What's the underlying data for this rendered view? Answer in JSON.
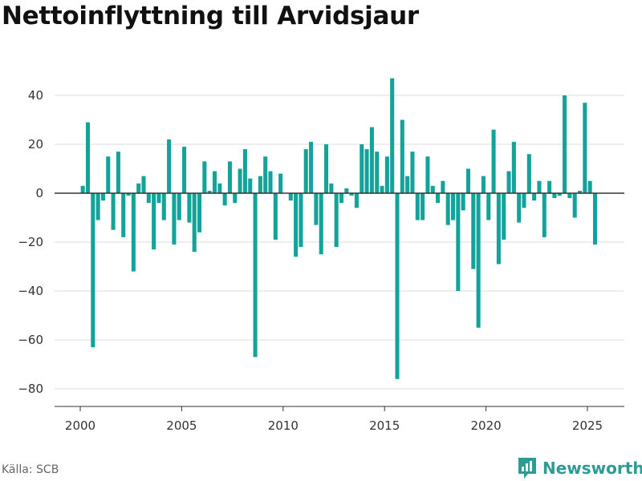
{
  "title": "Nettoinflyttning till Arvidsjaur",
  "source": "Källa: SCB",
  "brand": {
    "name": "Newsworthy",
    "icon": "newsworthy-logo-icon",
    "color": "#2e9b94"
  },
  "chart_data": {
    "type": "bar",
    "title": "Nettoinflyttning till Arvidsjaur",
    "xlabel": "",
    "ylabel": "",
    "bar_color": "#13a39a",
    "x_ticks": [
      2000,
      2005,
      2010,
      2015,
      2020,
      2025
    ],
    "y_ticks": [
      40,
      20,
      0,
      -20,
      -40,
      -60,
      -80
    ],
    "y_tick_labels": [
      "40",
      "20",
      "0",
      "−20",
      "−40",
      "−60",
      "−80"
    ],
    "ylim": [
      -87,
      50
    ],
    "xlim": [
      1999.875,
      2026.875
    ],
    "grid": true,
    "legend": "none",
    "x": [
      2000.125,
      2000.375,
      2000.625,
      2000.875,
      2001.125,
      2001.375,
      2001.625,
      2001.875,
      2002.125,
      2002.375,
      2002.625,
      2002.875,
      2003.125,
      2003.375,
      2003.625,
      2003.875,
      2004.125,
      2004.375,
      2004.625,
      2004.875,
      2005.125,
      2005.375,
      2005.625,
      2005.875,
      2006.125,
      2006.375,
      2006.625,
      2006.875,
      2007.125,
      2007.375,
      2007.625,
      2007.875,
      2008.125,
      2008.375,
      2008.625,
      2008.875,
      2009.125,
      2009.375,
      2009.625,
      2009.875,
      2010.125,
      2010.375,
      2010.625,
      2010.875,
      2011.125,
      2011.375,
      2011.625,
      2011.875,
      2012.125,
      2012.375,
      2012.625,
      2012.875,
      2013.125,
      2013.375,
      2013.625,
      2013.875,
      2014.125,
      2014.375,
      2014.625,
      2014.875,
      2015.125,
      2015.375,
      2015.625,
      2015.875,
      2016.125,
      2016.375,
      2016.625,
      2016.875,
      2017.125,
      2017.375,
      2017.625,
      2017.875,
      2018.125,
      2018.375,
      2018.625,
      2018.875,
      2019.125,
      2019.375,
      2019.625,
      2019.875,
      2020.125,
      2020.375,
      2020.625,
      2020.875,
      2021.125,
      2021.375,
      2021.625,
      2021.875,
      2022.125,
      2022.375,
      2022.625,
      2022.875,
      2023.125,
      2023.375,
      2023.625,
      2023.875,
      2024.125,
      2024.375,
      2024.625,
      2024.875,
      2025.125,
      2025.375
    ],
    "values": [
      3,
      29,
      -63,
      -11,
      -3,
      15,
      -15,
      17,
      -18,
      -1,
      -32,
      4,
      7,
      -4,
      -23,
      -4,
      -11,
      22,
      -21,
      -11,
      19,
      -12,
      -24,
      -16,
      13,
      1,
      9,
      4,
      -5,
      13,
      -4,
      10,
      18,
      6,
      -67,
      7,
      15,
      9,
      -19,
      8,
      0,
      -3,
      -26,
      -22,
      18,
      21,
      -13,
      -25,
      20,
      4,
      -22,
      -4,
      2,
      -1,
      -6,
      20,
      18,
      27,
      17,
      3,
      15,
      47,
      -76,
      30,
      7,
      17,
      -11,
      -11,
      15,
      3,
      -4,
      5,
      -13,
      -11,
      -40,
      -7,
      10,
      -31,
      -55,
      7,
      -11,
      26,
      -29,
      -19,
      9,
      21,
      -12,
      -6,
      16,
      -3,
      5,
      -18,
      5,
      -2,
      -1,
      40,
      -2,
      -10,
      1,
      37,
      5,
      -21
    ]
  }
}
